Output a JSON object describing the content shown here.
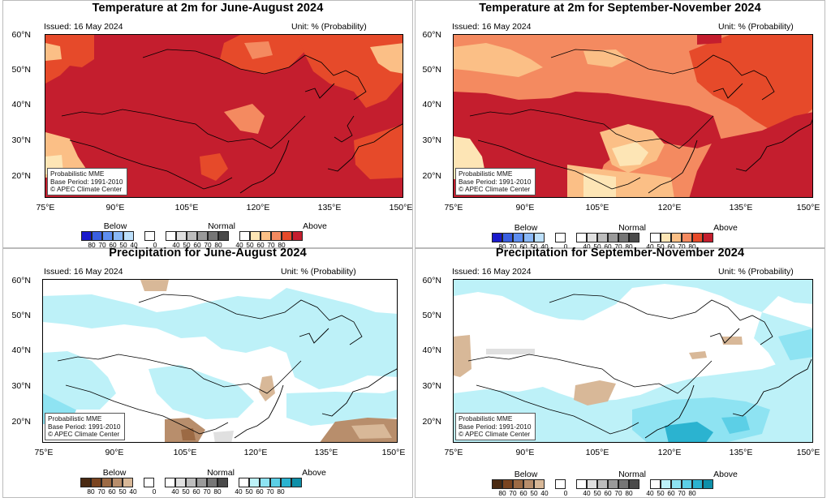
{
  "panels": [
    {
      "id": "temp-jja",
      "title": "Temperature at 2m for June-August 2024",
      "issued": "Issued: 16 May 2024",
      "unit": "Unit: % (Probability)",
      "variable": "temperature",
      "dominant_category": "above",
      "info": [
        "Probabilistic MME",
        "Base Period: 1991-2010",
        "© APEC Climate Center"
      ]
    },
    {
      "id": "temp-son",
      "title": "Temperature at 2m for September-November 2024",
      "issued": "Issued: 16 May 2024",
      "unit": "Unit: % (Probability)",
      "variable": "temperature",
      "dominant_category": "above",
      "info": [
        "Probabilistic MME",
        "Base Period: 1991-2010",
        "© APEC Climate Center"
      ]
    },
    {
      "id": "prec-jja",
      "title": "Precipitation for June-August 2024",
      "issued": "Issued: 16 May 2024",
      "unit": "Unit: % (Probability)",
      "variable": "precipitation",
      "dominant_category": "above",
      "info": [
        "Probabilistic MME",
        "Base Period: 1991-2010",
        "© APEC Climate Center"
      ]
    },
    {
      "id": "prec-son",
      "title": "Precipitation for September-November 2024",
      "issued": "Issued: 16 May 2024",
      "unit": "Unit: % (Probability)",
      "variable": "precipitation",
      "dominant_category": "above",
      "info": [
        "Probabilistic MME",
        "Base Period: 1991-2010",
        "© APEC Climate Center"
      ]
    }
  ],
  "lat_labels": [
    "60°N",
    "50°N",
    "40°N",
    "30°N",
    "20°N"
  ],
  "lon_labels": [
    "75°E",
    "90°E",
    "105°E",
    "120°E",
    "135°E",
    "150°E"
  ],
  "legend_groups": [
    "Below",
    "Normal",
    "Above"
  ],
  "legend_ticks": [
    "80",
    "70",
    "60",
    "50",
    "40",
    "0",
    "40",
    "50",
    "60",
    "70",
    "80",
    "40",
    "50",
    "60",
    "70",
    "80"
  ],
  "colors": {
    "temp_below": [
      "#1a1acc",
      "#3a5fe0",
      "#5e8ef0",
      "#8ab8f7",
      "#bde0fb"
    ],
    "normal": [
      "#e0e0e0",
      "#bdbdbd",
      "#9a9a9a",
      "#767676",
      "#4a4a4a"
    ],
    "temp_above": [
      "#fde5b5",
      "#fbbf86",
      "#f48a60",
      "#e64a2a",
      "#c41e2e"
    ],
    "prec_below": [
      "#4a2a12",
      "#7a4420",
      "#9c6a44",
      "#b88e6c",
      "#d8b898"
    ],
    "prec_above": [
      "#bdf1f8",
      "#8ee3f2",
      "#5ccfe6",
      "#2bb3d0",
      "#0e8fa8"
    ]
  }
}
